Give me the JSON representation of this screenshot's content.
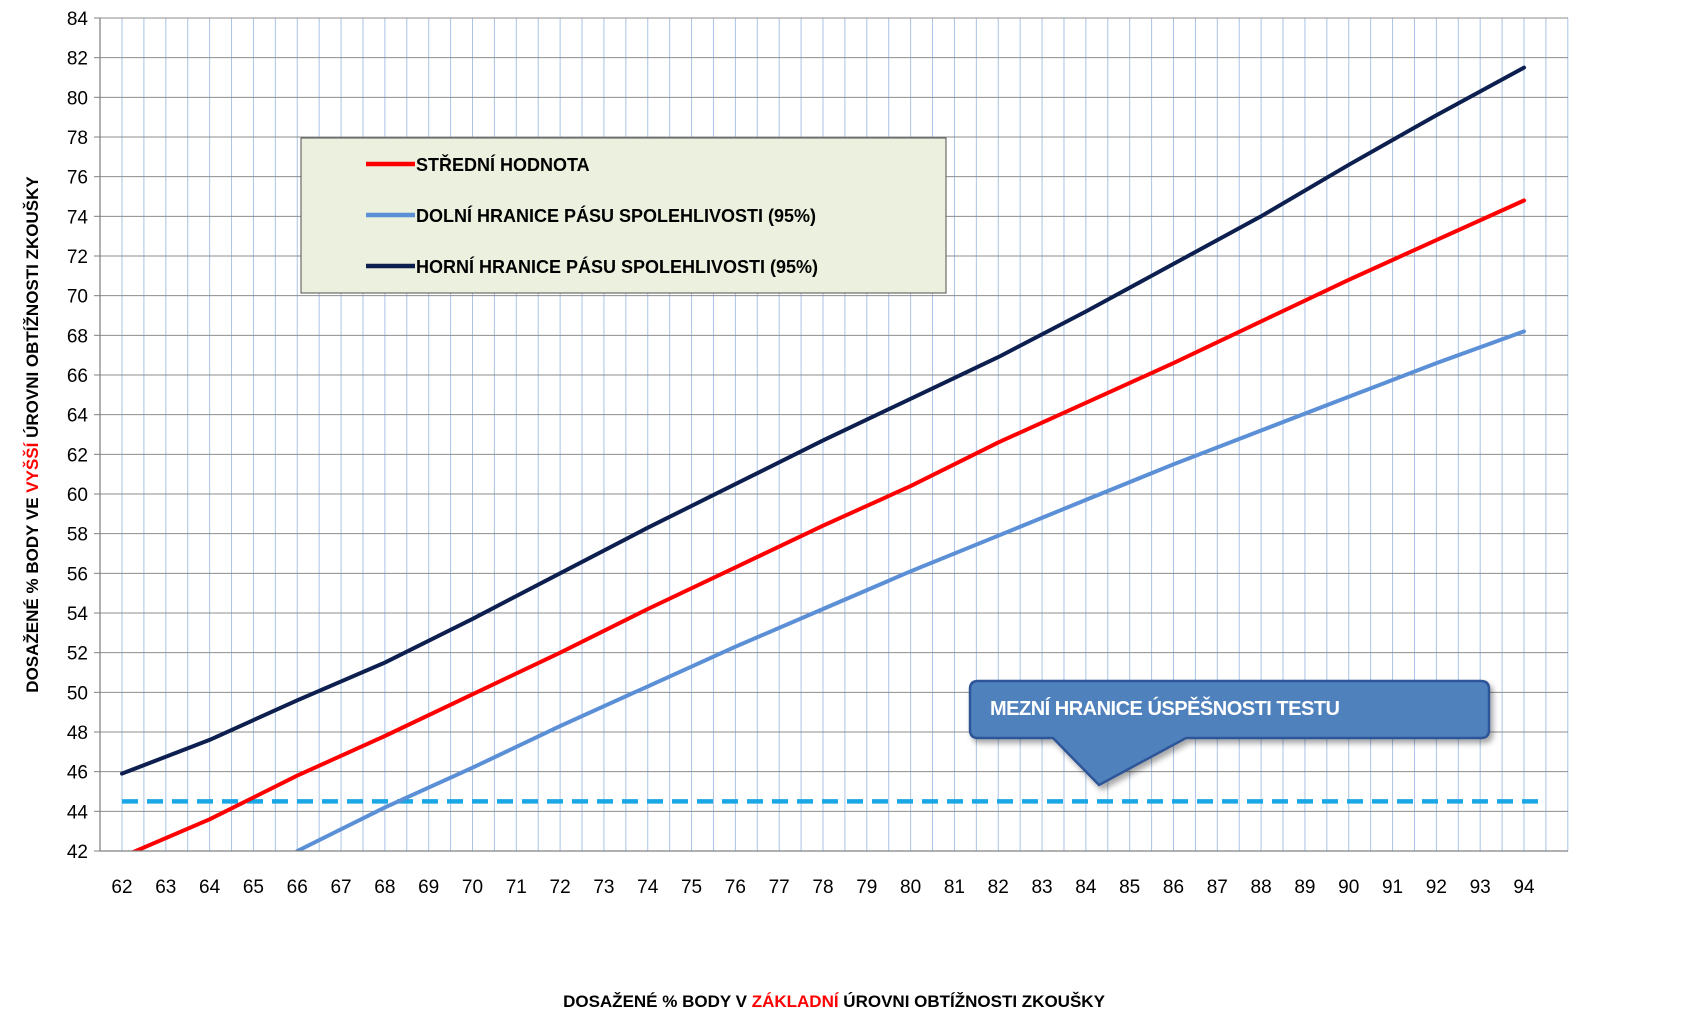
{
  "chart_data": {
    "type": "line",
    "xlabel_parts": [
      "DOSAŽENÉ % BODY V ",
      "ZÁKLADNÍ",
      " ÚROVNI OBTÍŽNOSTI ZKOUŠKY"
    ],
    "ylabel_parts": [
      "DOSAŽENÉ % BODY VE ",
      "VYŠŠÍ",
      " ÚROVNI OBTÍŽNOSTI  ZKOUŠKY"
    ],
    "label_highlight_color": "#ff0000",
    "xlim": [
      62,
      94
    ],
    "ylim": [
      42,
      84
    ],
    "x_ticks": [
      "62",
      "63",
      "64",
      "65",
      "66",
      "67",
      "68",
      "69",
      "70",
      "71",
      "72",
      "73",
      "74",
      "75",
      "76",
      "77",
      "78",
      "79",
      "80",
      "81",
      "82",
      "83",
      "84",
      "85",
      "86",
      "87",
      "88",
      "89",
      "90",
      "91",
      "92",
      "93",
      "94"
    ],
    "y_ticks": [
      "42",
      "44",
      "46",
      "48",
      "50",
      "52",
      "54",
      "56",
      "58",
      "60",
      "62",
      "64",
      "66",
      "68",
      "70",
      "72",
      "74",
      "76",
      "78",
      "80",
      "82",
      "84"
    ],
    "grid": true,
    "grid_color": "#a9c3e6",
    "legend_position": "top-left",
    "series": [
      {
        "name": "STŘEDNÍ HODNOTA",
        "color": "#ff0000",
        "x": [
          62,
          64,
          66,
          68,
          70,
          72,
          74,
          76,
          78,
          80,
          82,
          84,
          86,
          88,
          90,
          92,
          94
        ],
        "y": [
          41.7,
          43.6,
          45.8,
          47.8,
          49.9,
          52.0,
          54.2,
          56.3,
          58.4,
          60.4,
          62.6,
          64.6,
          66.6,
          68.7,
          70.8,
          72.8,
          74.8
        ]
      },
      {
        "name": "DOLNÍ HRANICE PÁSU SPOLEHLIVOSTI (95%)",
        "color": "#5b8fd6",
        "x": [
          66,
          68,
          70,
          72,
          74,
          76,
          78,
          80,
          82,
          84,
          86,
          88,
          90,
          92,
          94
        ],
        "y": [
          42.0,
          44.2,
          46.2,
          48.3,
          50.3,
          52.3,
          54.2,
          56.1,
          57.9,
          59.7,
          61.5,
          63.2,
          64.9,
          66.6,
          68.2
        ]
      },
      {
        "name": "HORNÍ HRANICE PÁSU SPOLEHLIVOSTI (95%)",
        "color": "#0d1f4f",
        "x": [
          62,
          64,
          66,
          68,
          70,
          72,
          74,
          76,
          78,
          80,
          82,
          84,
          86,
          88,
          90,
          92,
          94
        ],
        "y": [
          45.9,
          47.6,
          49.6,
          51.5,
          53.7,
          56.0,
          58.3,
          60.5,
          62.7,
          64.8,
          66.9,
          69.2,
          71.6,
          74.0,
          76.6,
          79.1,
          81.5
        ]
      }
    ],
    "threshold": {
      "y": 44.5,
      "x_range": [
        62,
        94
      ],
      "color": "#1aa7e6",
      "style": "dashed"
    },
    "annotation": {
      "text": "MEZNÍ HRANICE ÚSPĚŠNOSTI TESTU",
      "fill": "#4f81bd",
      "stroke": "#2f5597",
      "points_to_x": 84.3
    },
    "legend_background": "#ebf0df"
  }
}
